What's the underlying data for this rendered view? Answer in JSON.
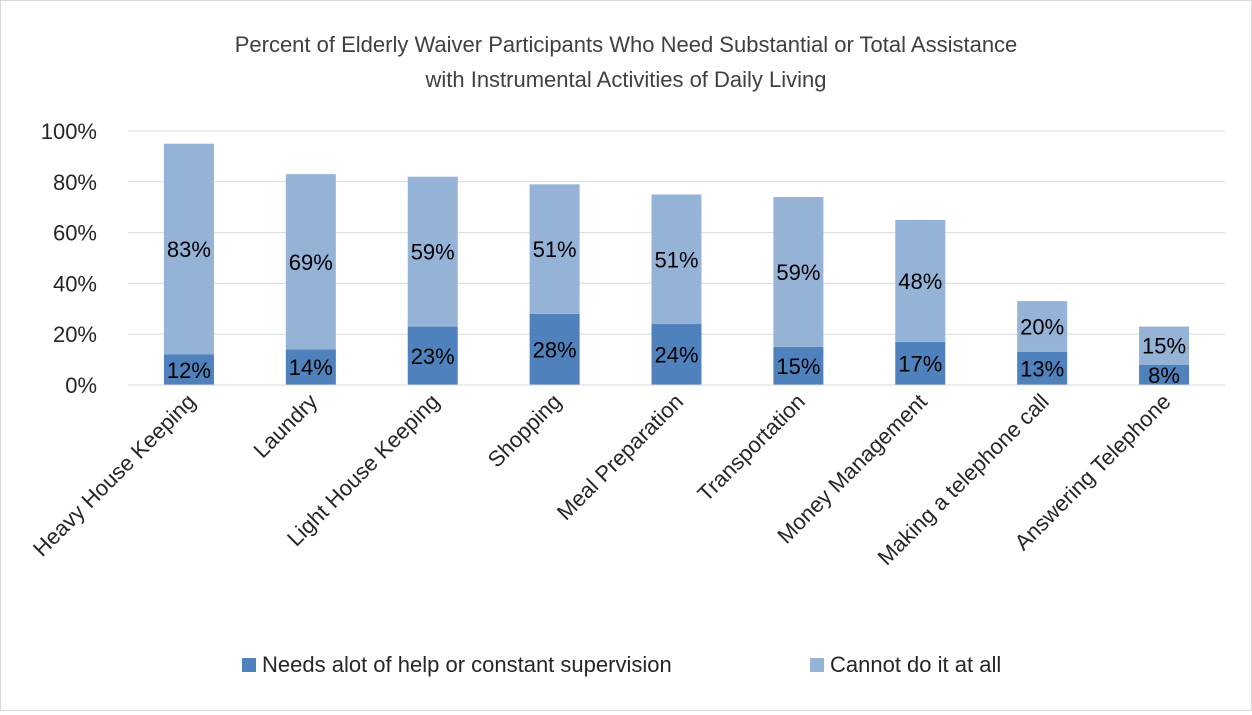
{
  "chart_data": {
    "type": "bar",
    "stacked": true,
    "title": "Percent of Elderly Waiver Participants Who Need Substantial or Total Assistance",
    "subtitle": "with Instrumental Activities of Daily Living",
    "categories": [
      "Heavy House Keeping",
      "Laundry",
      "Light House Keeping",
      "Shopping",
      "Meal Preparation",
      "Transportation",
      "Money Management",
      "Making a telephone call",
      "Answering Telephone"
    ],
    "series": [
      {
        "name": "Needs alot of help or constant supervision",
        "values": [
          12,
          14,
          23,
          28,
          24,
          15,
          17,
          13,
          8
        ],
        "labels": [
          "12%",
          "14%",
          "23%",
          "28%",
          "24%",
          "15%",
          "17%",
          "13%",
          "8%"
        ],
        "color": "#4f81bd"
      },
      {
        "name": "Cannot do it at all",
        "values": [
          83,
          69,
          59,
          51,
          51,
          59,
          48,
          20,
          15
        ],
        "labels": [
          "83%",
          "69%",
          "59%",
          "51%",
          "51%",
          "59%",
          "48%",
          "20%",
          "15%"
        ],
        "color": "#95b3d7"
      }
    ],
    "ylim": [
      0,
      100
    ],
    "yticks": [
      "0%",
      "20%",
      "40%",
      "60%",
      "80%",
      "100%"
    ],
    "xlabel": "",
    "ylabel": "",
    "grid": true,
    "legend": "bottom"
  }
}
